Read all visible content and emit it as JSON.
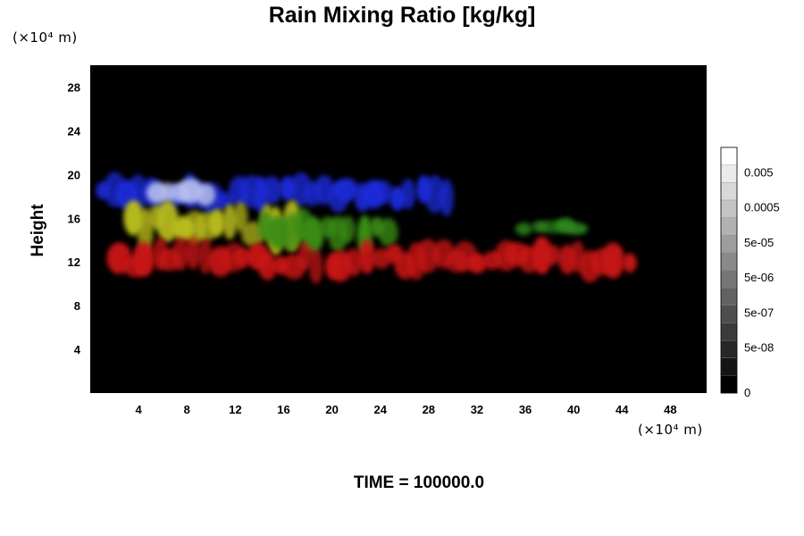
{
  "chart_data": {
    "type": "heatmap",
    "title": "Rain Mixing Ratio [kg/kg]",
    "ylabel": "Height",
    "xlabel": "",
    "x_unit": "(×10⁴ m)",
    "y_unit": "(×10⁴ m)",
    "xlim": [
      0,
      51
    ],
    "ylim": [
      0,
      30
    ],
    "x_ticks": [
      4,
      8,
      12,
      16,
      20,
      24,
      28,
      32,
      36,
      40,
      44,
      48
    ],
    "y_ticks": [
      4,
      8,
      12,
      16,
      20,
      24,
      28
    ],
    "x_tick_labels": [
      "4",
      "8",
      "12",
      "16",
      "20",
      "24",
      "28",
      "32",
      "36",
      "40",
      "44",
      "48"
    ],
    "y_tick_labels": [
      "4",
      "8",
      "12",
      "16",
      "20",
      "24",
      "28"
    ],
    "grid": false,
    "background_color": "#000000",
    "colorbar": {
      "position": "right",
      "levels": 14,
      "labels": [
        "0",
        "5e-08",
        "5e-07",
        "5e-06",
        "5e-05",
        "0.0005",
        "0.005"
      ],
      "label_levels": [
        0,
        2,
        4,
        6,
        8,
        10,
        12
      ]
    },
    "regions": [
      {
        "layer": "blue",
        "color": "#1a2ad6",
        "x_range": [
          0.5,
          30
        ],
        "y_range": [
          16.5,
          20
        ]
      },
      {
        "layer": "light-blue",
        "color": "#b8c0ee",
        "x_range": [
          5,
          10
        ],
        "y_range": [
          17,
          19.5
        ]
      },
      {
        "layer": "yellow",
        "color": "#b8bc1c",
        "x_range": [
          3,
          17
        ],
        "y_range": [
          13,
          18
        ]
      },
      {
        "layer": "green",
        "color": "#3a8c18",
        "x_range": [
          14,
          25
        ],
        "y_range": [
          13,
          17
        ]
      },
      {
        "layer": "green-right",
        "color": "#2f8a1e",
        "x_range": [
          35.5,
          41
        ],
        "y_range": [
          14.5,
          16
        ]
      },
      {
        "layer": "red",
        "color": "#c81414",
        "x_range": [
          2,
          45
        ],
        "y_range": [
          10.5,
          14
        ]
      }
    ],
    "annotations": [
      "TIME = 100000.0"
    ]
  }
}
